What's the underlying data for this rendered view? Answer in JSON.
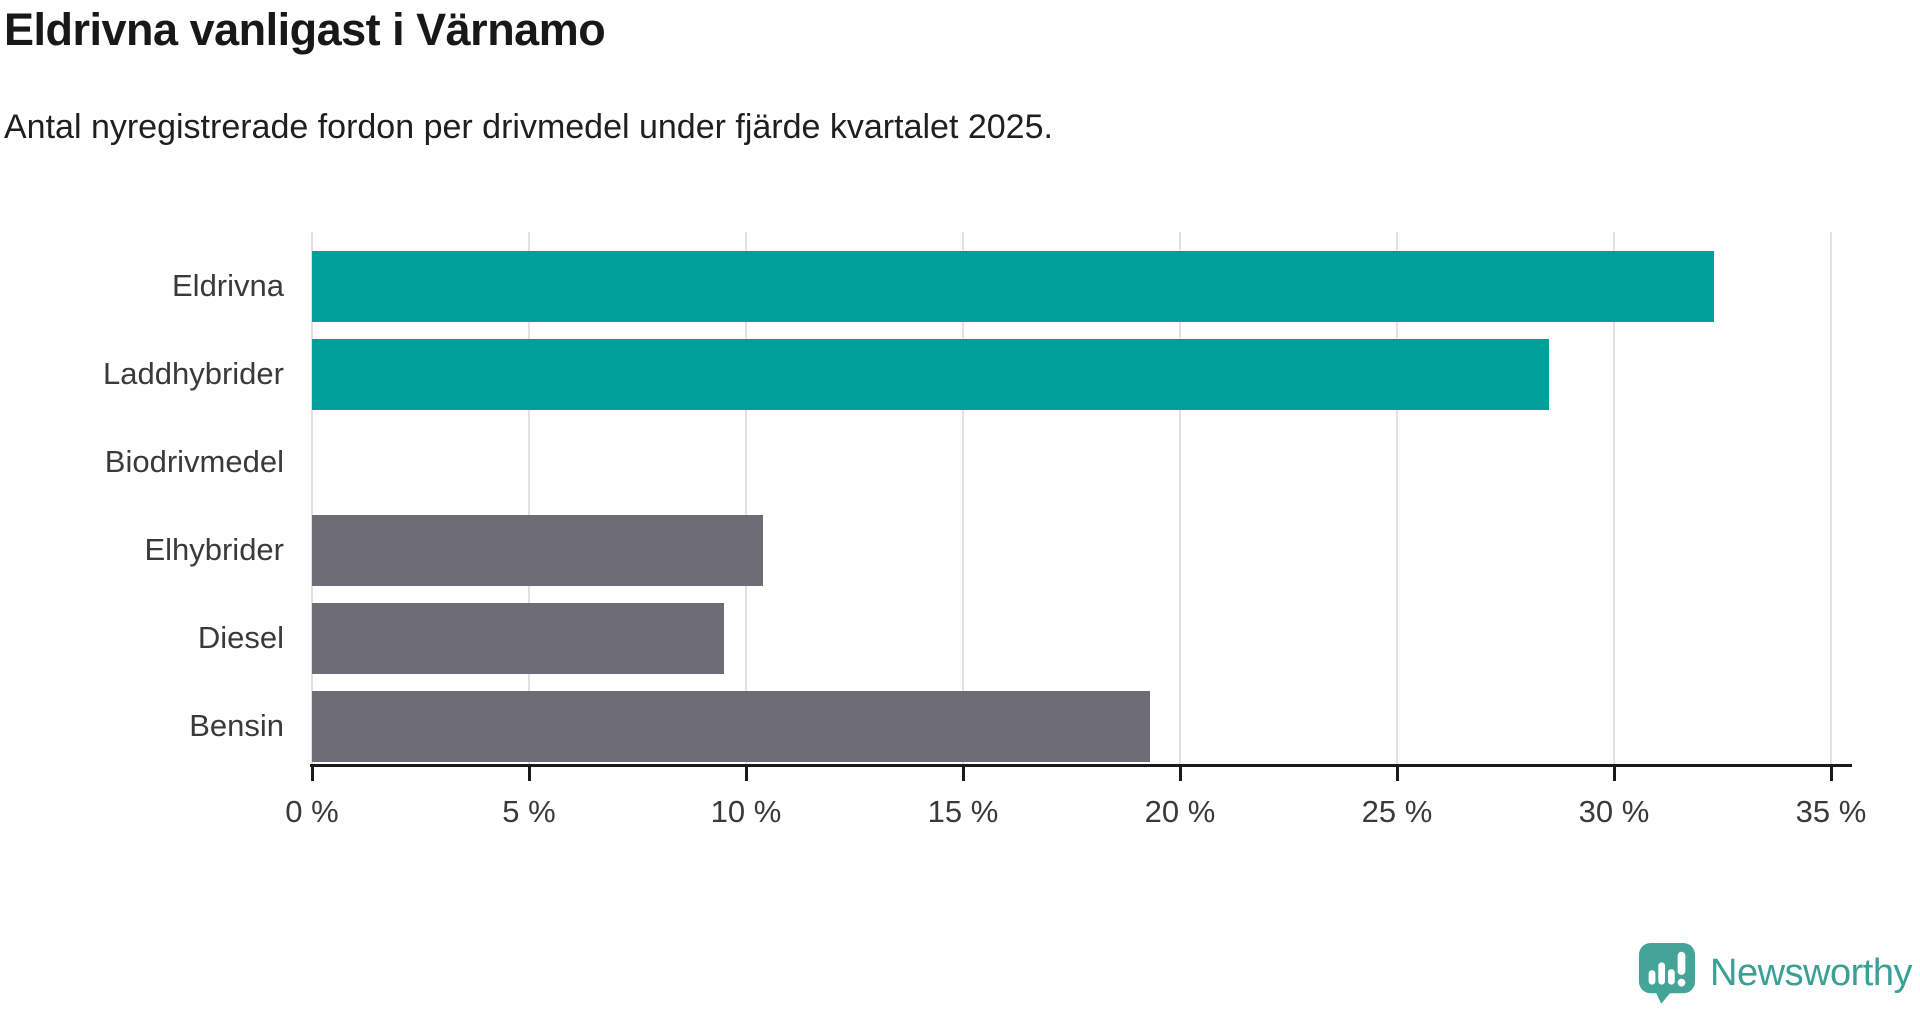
{
  "header": {
    "title": "Eldrivna vanligast i Värnamo",
    "subtitle": "Antal nyregistrerade fordon per drivmedel under fjärde kvartalet 2025."
  },
  "chart_data": {
    "type": "bar",
    "orientation": "horizontal",
    "title": "Eldrivna vanligast i Värnamo",
    "subtitle": "Antal nyregistrerade fordon per drivmedel under fjärde kvartalet 2025.",
    "categories": [
      "Eldrivna",
      "Laddhybrider",
      "Biodrivmedel",
      "Elhybrider",
      "Diesel",
      "Bensin"
    ],
    "values": [
      32.3,
      28.5,
      0,
      10.4,
      9.5,
      19.3
    ],
    "unit": "%",
    "bar_colors": [
      "#00a09a",
      "#00a09a",
      "#6e6c76",
      "#6e6c76",
      "#6e6c76",
      "#6e6c76"
    ],
    "highlight_color": "#00a09a",
    "default_color": "#6e6c76",
    "xlabel": "",
    "ylabel": "",
    "xlim": [
      0,
      35
    ],
    "x_tick_values": [
      0,
      5,
      10,
      15,
      20,
      25,
      30,
      35
    ],
    "x_tick_labels": [
      "0 %",
      "5 %",
      "10 %",
      "15 %",
      "20 %",
      "25 %",
      "30 %",
      "35 %"
    ],
    "grid": "vertical",
    "legend": "none"
  },
  "branding": {
    "wordmark": "Newsworthy",
    "color": "#3aa096"
  }
}
